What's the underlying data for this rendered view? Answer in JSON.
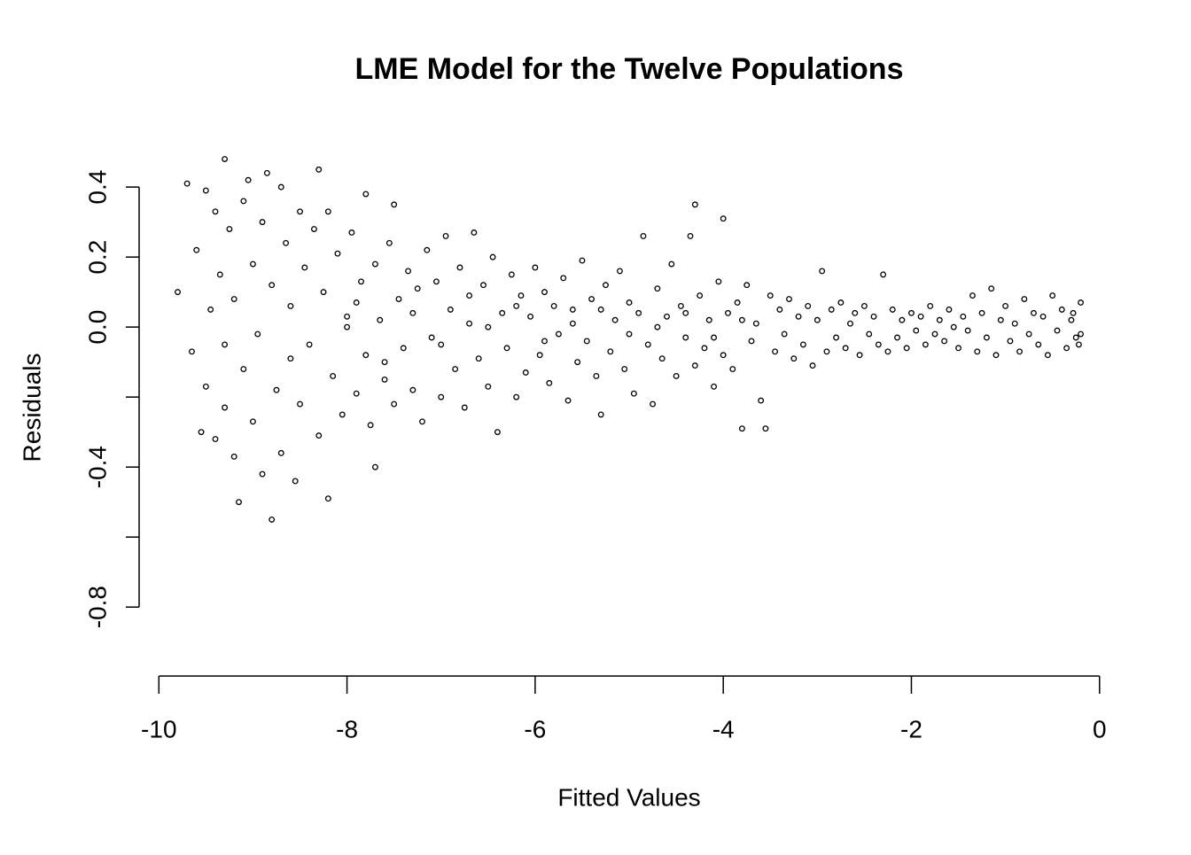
{
  "chart_data": {
    "type": "scatter",
    "title": "LME Model for the Twelve Populations",
    "x_label": "Fitted Values",
    "y_label": "Residuals",
    "color": "#000000",
    "xlim": [
      -10.21,
      0.2
    ],
    "ylim": [
      -0.997,
      0.537
    ],
    "xticks": [
      -10,
      -8,
      -6,
      -4,
      -2,
      0
    ],
    "yticks": [
      0.4,
      0.2,
      {
        "value": 0,
        "label": "0.0"
      },
      {
        "value": -0.2,
        "label": null
      },
      -0.4,
      {
        "value": -0.6,
        "label": null
      },
      -0.8
    ],
    "x": [
      -9.8,
      -9.7,
      -9.65,
      -9.6,
      -9.55,
      -9.5,
      -9.5,
      -9.45,
      -9.4,
      -9.4,
      -9.35,
      -9.3,
      -9.3,
      -9.3,
      -9.25,
      -9.2,
      -9.2,
      -9.15,
      -9.1,
      -9.1,
      -9.05,
      -9.0,
      -9.0,
      -8.95,
      -8.9,
      -8.9,
      -8.85,
      -8.8,
      -8.8,
      -8.75,
      -8.7,
      -8.7,
      -8.65,
      -8.6,
      -8.6,
      -8.55,
      -8.5,
      -8.5,
      -8.45,
      -8.4,
      -8.35,
      -8.3,
      -8.3,
      -8.25,
      -8.2,
      -8.2,
      -8.15,
      -8.1,
      -8.05,
      -8.0,
      -7.95,
      -7.9,
      -7.85,
      -7.8,
      -7.8,
      -7.75,
      -7.7,
      -7.7,
      -7.65,
      -7.6,
      -7.55,
      -7.5,
      -7.5,
      -7.45,
      -7.4,
      -7.35,
      -7.3,
      -7.25,
      -7.2,
      -7.15,
      -7.1,
      -7.05,
      -7.0,
      -6.95,
      -6.9,
      -6.85,
      -6.8,
      -6.75,
      -6.7,
      -6.65,
      -6.6,
      -6.55,
      -6.5,
      -6.45,
      -6.4,
      -6.35,
      -6.3,
      -6.25,
      -6.2,
      -6.15,
      -6.1,
      -6.05,
      -6.0,
      -5.95,
      -5.9,
      -5.85,
      -5.8,
      -5.75,
      -5.7,
      -5.65,
      -5.6,
      -5.55,
      -5.5,
      -5.45,
      -5.4,
      -5.35,
      -5.3,
      -5.25,
      -5.2,
      -5.15,
      -5.1,
      -5.05,
      -5.0,
      -4.95,
      -4.9,
      -4.85,
      -4.8,
      -4.75,
      -4.7,
      -4.65,
      -4.6,
      -4.55,
      -4.5,
      -4.45,
      -4.4,
      -4.35,
      -4.3,
      -4.3,
      -4.25,
      -4.2,
      -4.15,
      -4.1,
      -4.05,
      -4.0,
      -4.0,
      -3.95,
      -3.9,
      -3.85,
      -3.8,
      -3.75,
      -3.7,
      -3.65,
      -3.6,
      -3.55,
      -3.5,
      -3.45,
      -3.4,
      -3.35,
      -3.3,
      -3.25,
      -3.2,
      -3.15,
      -3.1,
      -3.05,
      -3.0,
      -2.95,
      -2.9,
      -2.85,
      -2.8,
      -2.75,
      -2.7,
      -2.65,
      -2.6,
      -2.55,
      -2.5,
      -2.45,
      -2.4,
      -2.35,
      -2.3,
      -2.25,
      -2.2,
      -2.15,
      -2.1,
      -2.05,
      -2.0,
      -1.95,
      -1.9,
      -1.85,
      -1.8,
      -1.75,
      -1.7,
      -1.65,
      -1.6,
      -1.55,
      -1.5,
      -1.45,
      -1.4,
      -1.35,
      -1.3,
      -1.25,
      -1.2,
      -1.15,
      -1.1,
      -1.05,
      -1.0,
      -0.95,
      -0.9,
      -0.85,
      -0.8,
      -0.75,
      -0.7,
      -0.65,
      -0.6,
      -0.55,
      -0.5,
      -0.45,
      -0.4,
      -0.35,
      -0.3,
      -0.25,
      -0.2,
      -0.2,
      -0.22,
      -0.28,
      -8.0,
      -7.9,
      -7.6,
      -7.3,
      -7.0,
      -6.7,
      -6.5,
      -6.2,
      -5.9,
      -5.6,
      -5.3,
      -5.0,
      -4.7,
      -4.4,
      -4.1,
      -3.8
    ],
    "values": [
      0.1,
      0.41,
      -0.07,
      0.22,
      -0.3,
      0.39,
      -0.17,
      0.05,
      0.33,
      -0.32,
      0.15,
      0.48,
      -0.23,
      -0.05,
      0.28,
      -0.37,
      0.08,
      -0.5,
      0.36,
      -0.12,
      0.42,
      -0.27,
      0.18,
      -0.02,
      0.3,
      -0.42,
      0.44,
      -0.55,
      0.12,
      -0.18,
      0.4,
      -0.36,
      0.24,
      -0.09,
      0.06,
      -0.44,
      0.33,
      -0.22,
      0.17,
      -0.05,
      0.28,
      0.45,
      -0.31,
      0.1,
      -0.49,
      0.33,
      -0.14,
      0.21,
      -0.25,
      0.03,
      0.27,
      -0.19,
      0.13,
      0.38,
      -0.08,
      -0.28,
      -0.4,
      0.18,
      0.02,
      -0.15,
      0.24,
      0.35,
      -0.22,
      0.08,
      -0.06,
      0.16,
      -0.18,
      0.11,
      -0.27,
      0.22,
      -0.03,
      0.13,
      -0.2,
      0.26,
      0.05,
      -0.12,
      0.17,
      -0.23,
      0.01,
      0.27,
      -0.09,
      0.12,
      -0.17,
      0.2,
      -0.3,
      0.04,
      -0.06,
      0.15,
      -0.2,
      0.09,
      -0.13,
      0.03,
      0.17,
      -0.08,
      0.1,
      -0.16,
      0.06,
      -0.02,
      0.14,
      -0.21,
      0.05,
      -0.1,
      0.19,
      -0.04,
      0.08,
      -0.14,
      -0.25,
      0.12,
      -0.07,
      0.02,
      0.16,
      -0.12,
      0.07,
      -0.19,
      0.04,
      0.26,
      -0.05,
      -0.22,
      0.11,
      -0.09,
      0.03,
      0.18,
      -0.14,
      0.06,
      -0.03,
      0.26,
      0.35,
      -0.11,
      0.09,
      -0.06,
      0.02,
      -0.17,
      0.13,
      0.31,
      -0.08,
      0.04,
      -0.12,
      0.07,
      -0.29,
      0.12,
      -0.04,
      0.01,
      -0.21,
      -0.29,
      0.09,
      -0.07,
      0.05,
      -0.02,
      0.08,
      -0.09,
      0.03,
      -0.05,
      0.06,
      -0.11,
      0.02,
      0.16,
      -0.07,
      0.05,
      -0.03,
      0.07,
      -0.06,
      0.01,
      0.04,
      -0.08,
      0.06,
      -0.02,
      0.03,
      -0.05,
      0.15,
      -0.07,
      0.05,
      -0.03,
      0.02,
      -0.06,
      0.04,
      -0.01,
      0.03,
      -0.05,
      0.06,
      -0.02,
      0.02,
      -0.04,
      0.05,
      0.0,
      -0.06,
      0.03,
      -0.01,
      0.09,
      -0.07,
      0.04,
      -0.03,
      0.11,
      -0.08,
      0.02,
      0.06,
      -0.04,
      0.01,
      -0.07,
      0.08,
      -0.02,
      0.04,
      -0.05,
      0.03,
      -0.08,
      0.09,
      -0.01,
      0.05,
      -0.06,
      0.02,
      -0.03,
      0.07,
      -0.02,
      -0.05,
      0.04,
      0.0,
      0.07,
      -0.1,
      0.04,
      -0.05,
      0.09,
      0.0,
      0.06,
      -0.04,
      0.01,
      0.05,
      -0.02,
      0.0,
      0.04,
      -0.03,
      0.02
    ]
  }
}
